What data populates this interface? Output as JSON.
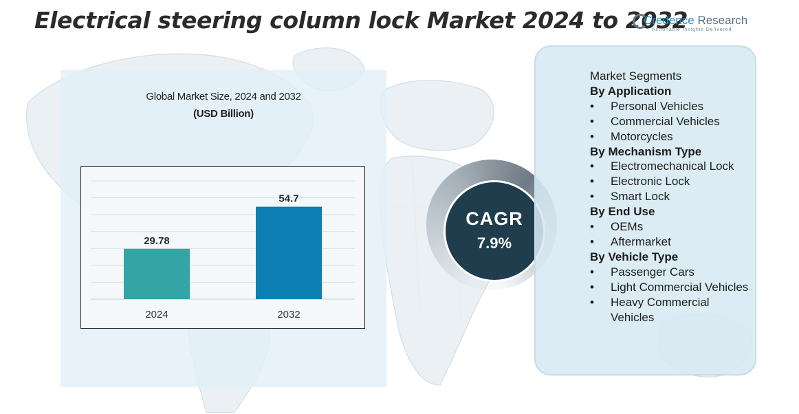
{
  "header": {
    "title": "Electrical steering column lock Market 2024 to 2032",
    "brand": {
      "name_first": "Credence",
      "name_rest": " Research",
      "tagline": "Actionable Insights Delivered",
      "color": "#2a8fc4"
    }
  },
  "chart_data": {
    "type": "bar",
    "title": "Global Market Size, 2024 and 2032",
    "subtitle": "(USD Billion)",
    "categories": [
      "2024",
      "2032"
    ],
    "values": [
      29.78,
      54.7
    ],
    "data_labels": [
      "29.78",
      "54.7"
    ],
    "colors": [
      "#35a4a4",
      "#0b7fb1"
    ],
    "xlabel": "",
    "ylabel": "",
    "ylim": [
      0,
      70
    ],
    "grid": true,
    "legend": "none"
  },
  "cagr": {
    "label": "CAGR",
    "value": "7.9%",
    "color": "#1f3d4c"
  },
  "segments": {
    "intro": "Market Segments",
    "groups": [
      {
        "heading": "By Application",
        "items": [
          "Personal Vehicles",
          "Commercial Vehicles",
          "Motorcycles"
        ]
      },
      {
        "heading": "By Mechanism Type",
        "items": [
          "Electromechanical Lock",
          "Electronic Lock",
          "Smart Lock"
        ]
      },
      {
        "heading": "By End Use",
        "items": [
          "OEMs",
          "Aftermarket"
        ]
      },
      {
        "heading": "By Vehicle Type",
        "items": [
          "Passenger Cars",
          "Light Commercial Vehicles",
          "Heavy Commercial Vehicles"
        ]
      }
    ]
  }
}
